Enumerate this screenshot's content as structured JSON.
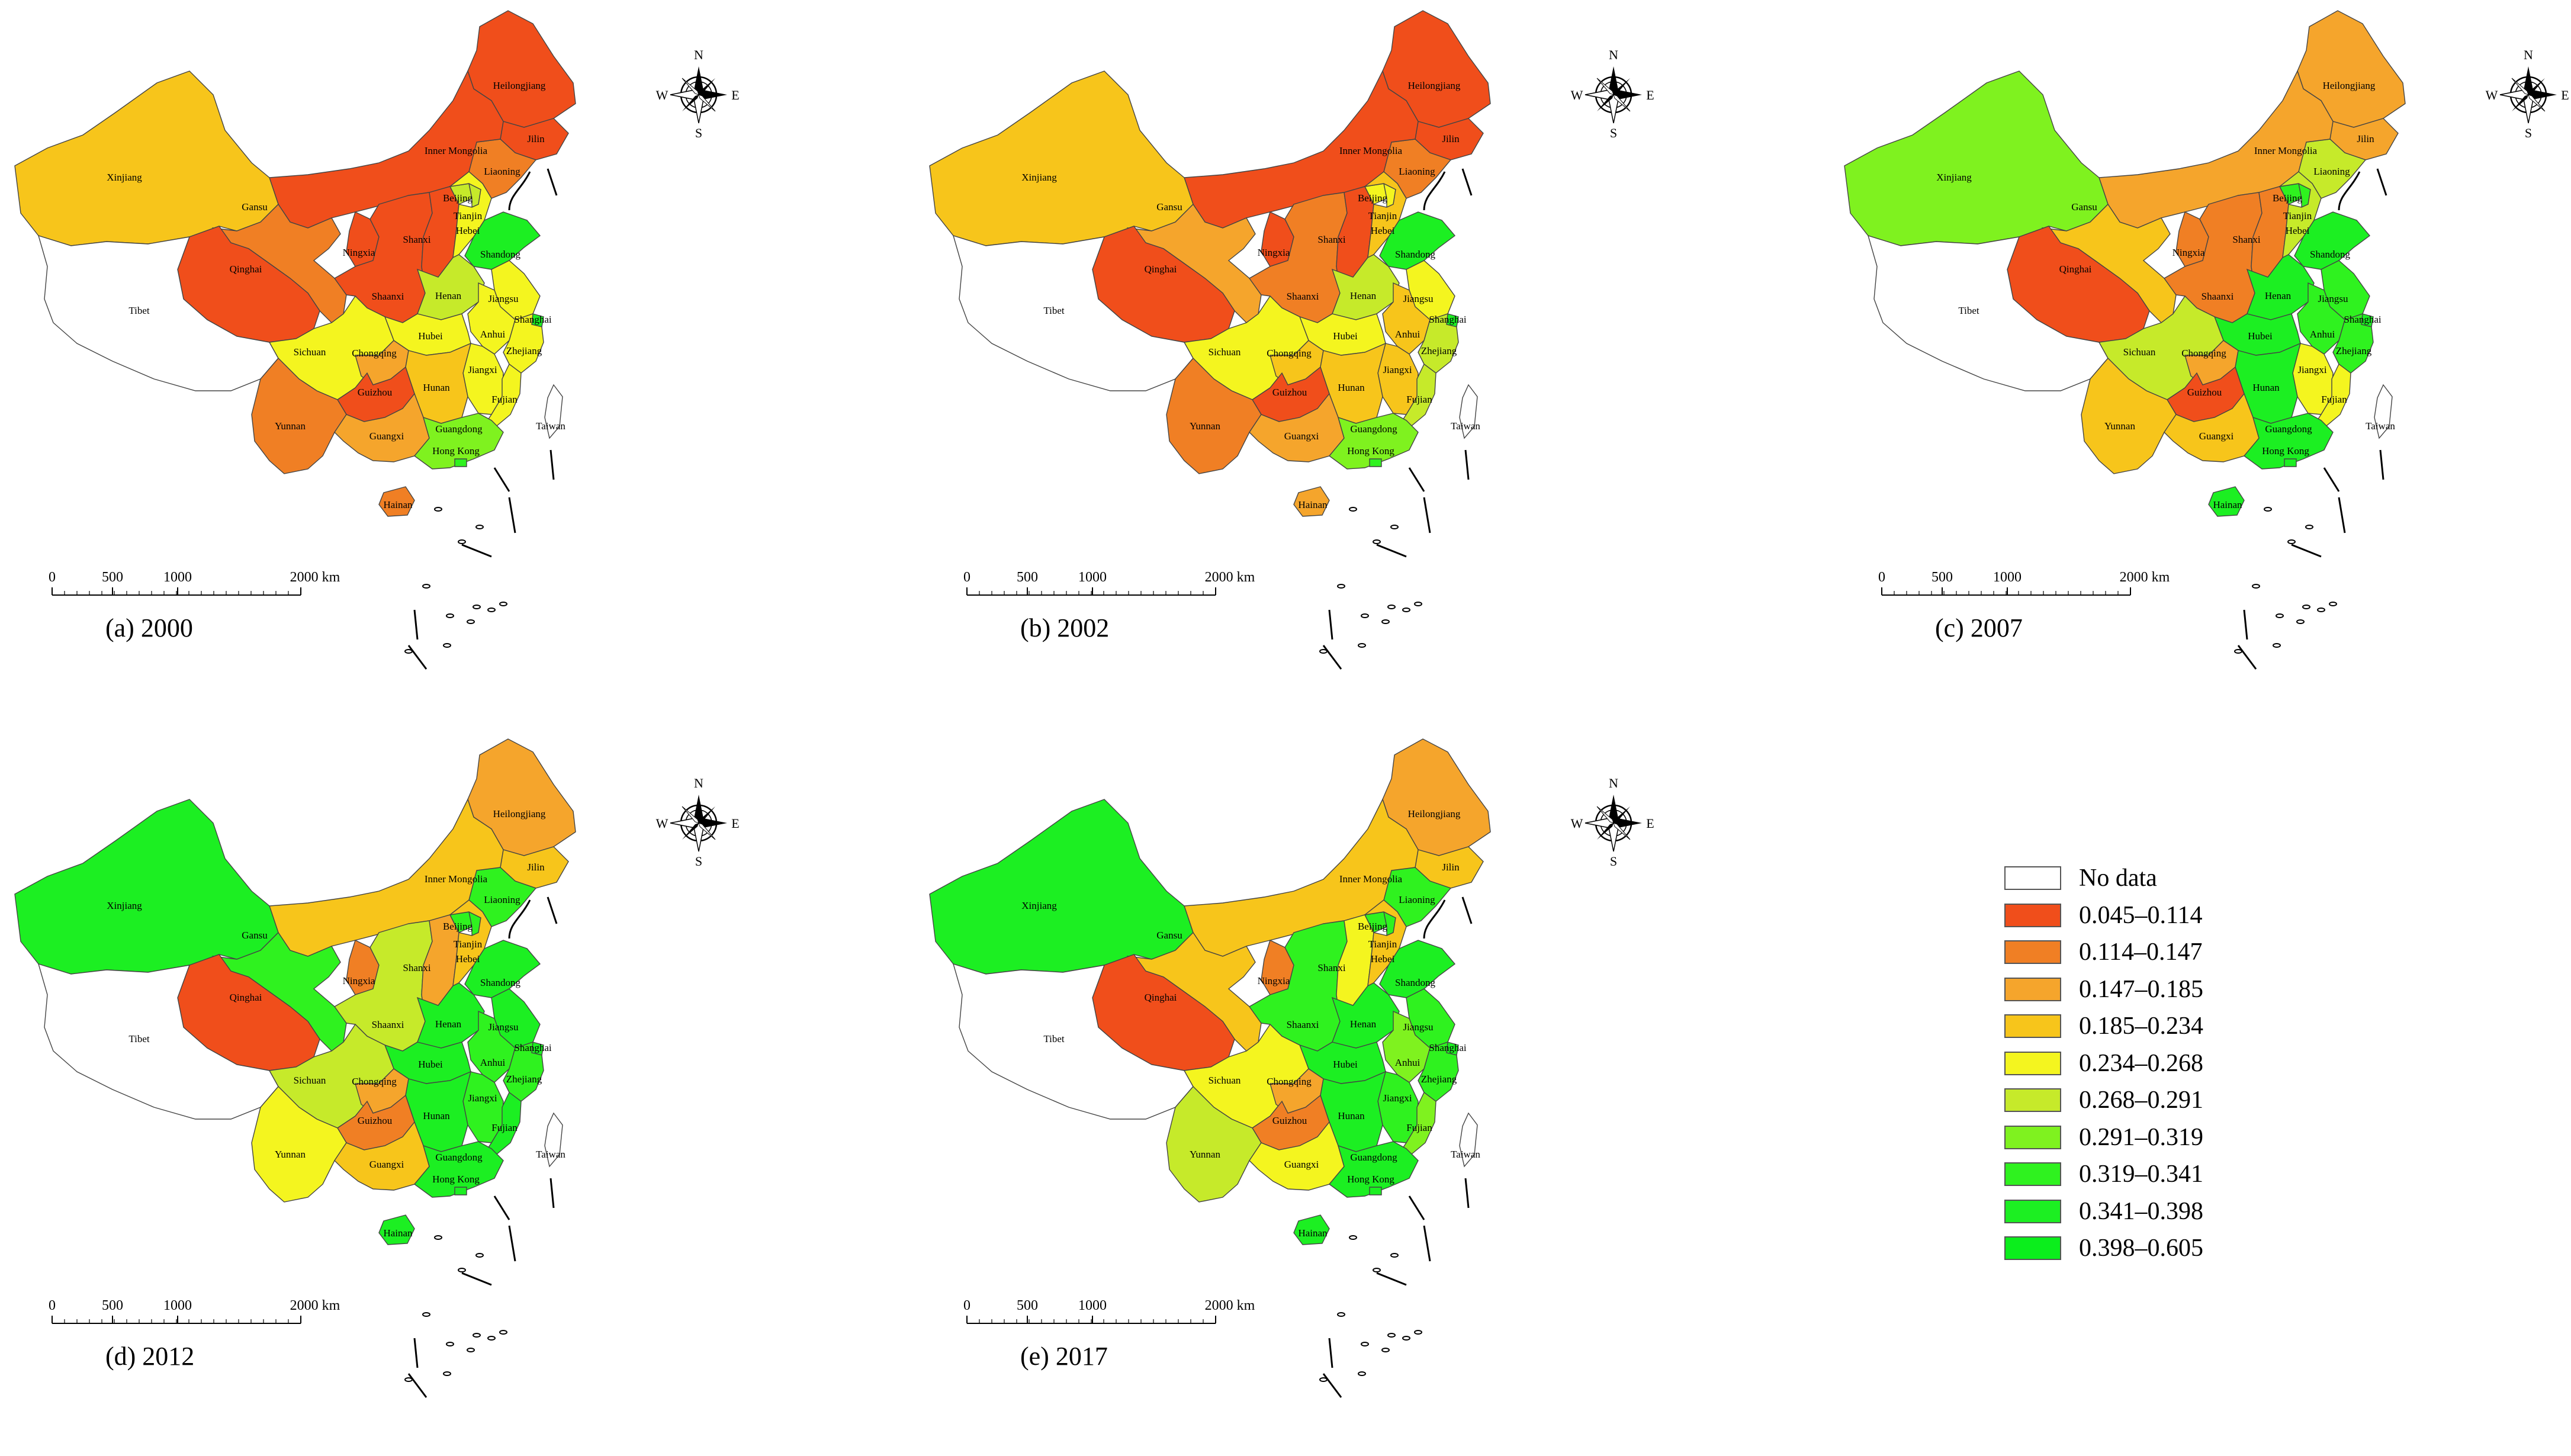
{
  "legend": {
    "items": [
      {
        "label": "No data",
        "color": "#ffffff"
      },
      {
        "label": "0.045–0.114",
        "color": "#f04e1b"
      },
      {
        "label": "0.114–0.147",
        "color": "#f07f24"
      },
      {
        "label": "0.147–0.185",
        "color": "#f5a52c"
      },
      {
        "label": "0.185–0.234",
        "color": "#f7c51b"
      },
      {
        "label": "0.234–0.268",
        "color": "#f4f51f"
      },
      {
        "label": "0.268–0.291",
        "color": "#c6ea2a"
      },
      {
        "label": "0.291–0.319",
        "color": "#7ff21f"
      },
      {
        "label": "0.319–0.341",
        "color": "#2ff21f"
      },
      {
        "label": "0.341–0.398",
        "color": "#1cef22"
      },
      {
        "label": "0.398–0.605",
        "color": "#0bee1c"
      }
    ]
  },
  "compass": {
    "n": "N",
    "s": "S",
    "e": "E",
    "w": "W"
  },
  "scale": {
    "ticks": [
      "0",
      "500",
      "1000",
      "2000 km"
    ]
  },
  "provinces": [
    "Heilongjiang",
    "Jilin",
    "Liaoning",
    "Inner Mongolia",
    "Xinjiang",
    "Gansu",
    "Qinghai",
    "Tibet",
    "Ningxia",
    "Shaanxi",
    "Shanxi",
    "Beijing",
    "Tianjin",
    "Hebei",
    "Shandong",
    "Henan",
    "Jiangsu",
    "Anhui",
    "Shanghai",
    "Hubei",
    "Zhejiang",
    "Sichuan",
    "Chongqing",
    "Jiangxi",
    "Hunan",
    "Fujian",
    "Guizhou",
    "Yunnan",
    "Guangxi",
    "Guangdong",
    "Hong Kong",
    "Taiwan",
    "Hainan"
  ],
  "maps": [
    {
      "caption": "(a) 2000",
      "classes": {
        "Heilongjiang": 1,
        "Jilin": 1,
        "Liaoning": 2,
        "Inner Mongolia": 1,
        "Xinjiang": 4,
        "Gansu": 2,
        "Qinghai": 1,
        "Tibet": 0,
        "Ningxia": 1,
        "Shaanxi": 1,
        "Shanxi": 1,
        "Beijing": 6,
        "Tianjin": 6,
        "Hebei": 5,
        "Shandong": 9,
        "Henan": 6,
        "Jiangsu": 5,
        "Anhui": 5,
        "Shanghai": 9,
        "Hubei": 5,
        "Zhejiang": 5,
        "Sichuan": 5,
        "Chongqing": 3,
        "Jiangxi": 5,
        "Hunan": 4,
        "Fujian": 5,
        "Guizhou": 1,
        "Yunnan": 2,
        "Guangxi": 3,
        "Guangdong": 7,
        "Hong Kong": 8,
        "Taiwan": 0,
        "Hainan": 2
      }
    },
    {
      "caption": "(b) 2002",
      "classes": {
        "Heilongjiang": 1,
        "Jilin": 1,
        "Liaoning": 2,
        "Inner Mongolia": 1,
        "Xinjiang": 4,
        "Gansu": 3,
        "Qinghai": 1,
        "Tibet": 0,
        "Ningxia": 1,
        "Shaanxi": 2,
        "Shanxi": 1,
        "Beijing": 5,
        "Tianjin": 5,
        "Hebei": 4,
        "Shandong": 9,
        "Henan": 6,
        "Jiangsu": 5,
        "Anhui": 4,
        "Shanghai": 9,
        "Hubei": 5,
        "Zhejiang": 6,
        "Sichuan": 5,
        "Chongqing": 4,
        "Jiangxi": 4,
        "Hunan": 4,
        "Fujian": 6,
        "Guizhou": 1,
        "Yunnan": 2,
        "Guangxi": 3,
        "Guangdong": 7,
        "Hong Kong": 8,
        "Taiwan": 0,
        "Hainan": 3
      }
    },
    {
      "caption": "(c) 2007",
      "classes": {
        "Heilongjiang": 3,
        "Jilin": 3,
        "Liaoning": 6,
        "Inner Mongolia": 3,
        "Xinjiang": 7,
        "Gansu": 4,
        "Qinghai": 1,
        "Tibet": 0,
        "Ningxia": 2,
        "Shaanxi": 2,
        "Shanxi": 2,
        "Beijing": 8,
        "Tianjin": 8,
        "Hebei": 6,
        "Shandong": 9,
        "Henan": 9,
        "Jiangsu": 8,
        "Anhui": 8,
        "Shanghai": 9,
        "Hubei": 9,
        "Zhejiang": 8,
        "Sichuan": 6,
        "Chongqing": 3,
        "Jiangxi": 5,
        "Hunan": 9,
        "Fujian": 5,
        "Guizhou": 1,
        "Yunnan": 4,
        "Guangxi": 4,
        "Guangdong": 9,
        "Hong Kong": 9,
        "Taiwan": 0,
        "Hainan": 9
      }
    },
    {
      "caption": "(d) 2012",
      "classes": {
        "Heilongjiang": 3,
        "Jilin": 4,
        "Liaoning": 8,
        "Inner Mongolia": 4,
        "Xinjiang": 9,
        "Gansu": 8,
        "Qinghai": 1,
        "Tibet": 0,
        "Ningxia": 2,
        "Shaanxi": 6,
        "Shanxi": 3,
        "Beijing": 8,
        "Tianjin": 8,
        "Hebei": 4,
        "Shandong": 9,
        "Henan": 9,
        "Jiangsu": 9,
        "Anhui": 8,
        "Shanghai": 9,
        "Hubei": 9,
        "Zhejiang": 8,
        "Sichuan": 6,
        "Chongqing": 3,
        "Jiangxi": 8,
        "Hunan": 9,
        "Fujian": 9,
        "Guizhou": 2,
        "Yunnan": 5,
        "Guangxi": 4,
        "Guangdong": 9,
        "Hong Kong": 9,
        "Taiwan": 0,
        "Hainan": 9
      }
    },
    {
      "caption": "(e) 2017",
      "classes": {
        "Heilongjiang": 3,
        "Jilin": 4,
        "Liaoning": 8,
        "Inner Mongolia": 4,
        "Xinjiang": 9,
        "Gansu": 4,
        "Qinghai": 1,
        "Tibet": 0,
        "Ningxia": 2,
        "Shaanxi": 8,
        "Shanxi": 5,
        "Beijing": 8,
        "Tianjin": 8,
        "Hebei": 4,
        "Shandong": 9,
        "Henan": 9,
        "Jiangsu": 8,
        "Anhui": 7,
        "Shanghai": 9,
        "Hubei": 9,
        "Zhejiang": 8,
        "Sichuan": 5,
        "Chongqing": 3,
        "Jiangxi": 8,
        "Hunan": 9,
        "Fujian": 7,
        "Guizhou": 2,
        "Yunnan": 6,
        "Guangxi": 5,
        "Guangdong": 9,
        "Hong Kong": 9,
        "Taiwan": 0,
        "Hainan": 9
      }
    }
  ]
}
